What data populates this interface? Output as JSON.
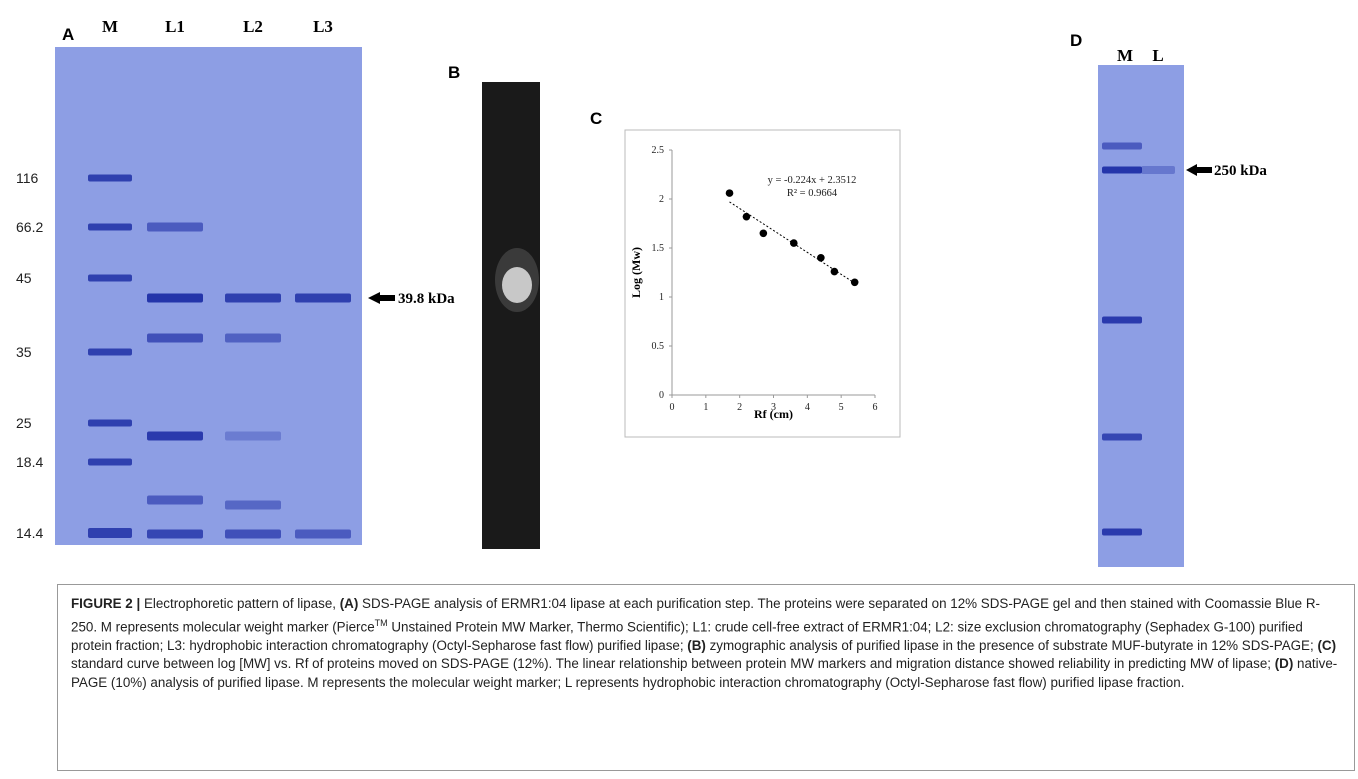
{
  "panels": {
    "a": {
      "label": "A",
      "lanes": [
        "M",
        "L1",
        "L2",
        "L3"
      ],
      "markers": [
        116,
        66.2,
        45,
        35,
        25,
        18.4,
        14.4
      ],
      "arrow_label": "39.8 kDa"
    },
    "b": {
      "label": "B"
    },
    "c": {
      "label": "C"
    },
    "d": {
      "label": "D",
      "lanes": [
        "M",
        "L"
      ],
      "arrow_label": "250 kDa"
    }
  },
  "chart_data": {
    "type": "scatter",
    "x_label": "Rf (cm)",
    "y_label": "Log (Mw)",
    "x": [
      1.7,
      2.2,
      2.7,
      3.6,
      4.4,
      4.8,
      5.4
    ],
    "values": [
      2.06,
      1.82,
      1.65,
      1.55,
      1.4,
      1.26,
      1.15
    ],
    "color": "#000000",
    "xlim": [
      0,
      6
    ],
    "xticks": [
      0,
      1,
      2,
      3,
      4,
      5,
      6
    ],
    "ylim": [
      0,
      2.5
    ],
    "yticks": [
      0,
      0.5,
      1,
      1.5,
      2,
      2.5
    ],
    "grid": false,
    "trendline": {
      "slope": -0.224,
      "intercept": 2.3512,
      "equation": "y = -0.224x + 2.3512",
      "r_squared": "R² = 0.9664"
    }
  },
  "caption": {
    "segments": [
      {
        "text": "FIGURE 2 |",
        "bold": true
      },
      {
        "text": " Electrophoretic pattern of lipase, "
      },
      {
        "text": "(A)",
        "bold": true
      },
      {
        "text": " SDS-PAGE analysis of ERMR1:04 lipase at each purification step. The proteins were separated on 12% SDS-PAGE gel and then stained with Coomassie Blue R-250. M represents molecular weight marker (Pierce"
      },
      {
        "text": "TM",
        "sup": true
      },
      {
        "text": " Unstained Protein MW Marker, Thermo Scientific); L1: crude cell-free extract of ERMR1:04; L2: size exclusion chromatography (Sephadex G-100) purified protein fraction; L3: hydrophobic interaction chromatography (Octyl-Sepharose fast flow) purified lipase; "
      },
      {
        "text": "(B)",
        "bold": true
      },
      {
        "text": " zymographic analysis of purified lipase in the presence of substrate MUF-butyrate in 12% SDS-PAGE; "
      },
      {
        "text": "(C)",
        "bold": true
      },
      {
        "text": " standard curve between log [MW] vs. Rf of proteins moved on SDS-PAGE (12%). The linear relationship between protein MW markers and migration distance showed reliability in predicting MW of lipase; "
      },
      {
        "text": "(D)",
        "bold": true
      },
      {
        "text": " native-PAGE (10%) analysis of purified lipase. M represents the molecular weight marker; L represents hydrophobic interaction chromatography (Octyl-Sepharose fast flow) purified lipase fraction."
      }
    ]
  }
}
